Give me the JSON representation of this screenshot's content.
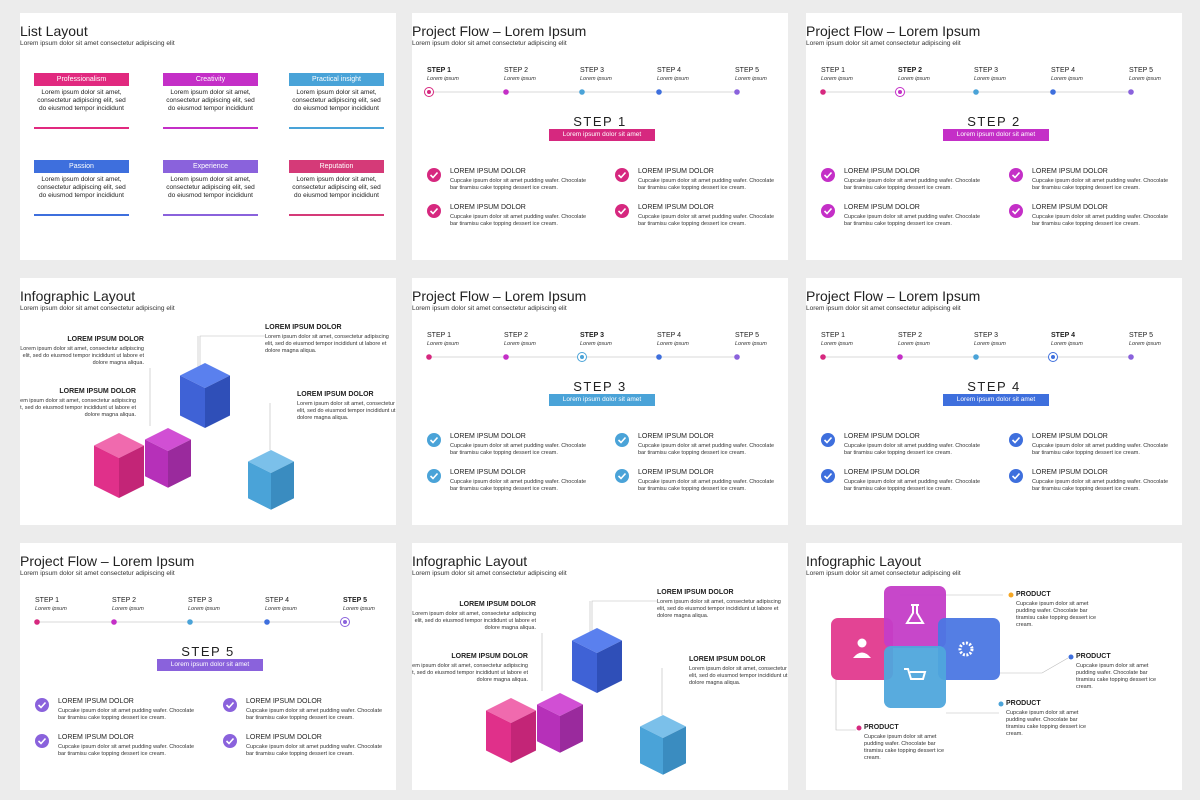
{
  "step_colors": [
    "#d6287f",
    "#c42fc7",
    "#4aa3d8",
    "#3e6fdd",
    "#8a62dc"
  ],
  "slides": [
    {
      "type": "list",
      "title": "List Layout",
      "subtitle": "Lorem ipsum dolor sit amet consectetur adipiscing elit",
      "items": [
        {
          "label": "Professionalism",
          "color": "#e1297f",
          "text": "Lorem ipsum dolor sit amet, consectetur adipiscing elit, sed do eiusmod tempor incididunt"
        },
        {
          "label": "Creativity",
          "color": "#c42fc7",
          "text": "Lorem ipsum dolor sit amet, consectetur adipiscing elit, sed do eiusmod tempor incididunt"
        },
        {
          "label": "Practical insight",
          "color": "#49a3d8",
          "text": "Lorem ipsum dolor sit amet, consectetur adipiscing elit, sed do eiusmod tempor incididunt"
        },
        {
          "label": "Passion",
          "color": "#3e6fdd",
          "text": "Lorem ipsum dolor sit amet, consectetur adipiscing elit, sed do eiusmod tempor incididunt"
        },
        {
          "label": "Experience",
          "color": "#8a62dc",
          "text": "Lorem ipsum dolor sit amet, consectetur adipiscing elit, sed do eiusmod tempor incididunt"
        },
        {
          "label": "Reputation",
          "color": "#d53a78",
          "text": "Lorem ipsum dolor sit amet, consectetur adipiscing elit, sed do eiusmod tempor incididunt"
        }
      ]
    },
    {
      "type": "flow",
      "title": "Project Flow – Lorem Ipsum",
      "subtitle": "Lorem ipsum dolor sit amet consectetur adipiscing elit",
      "steps": [
        {
          "label": "STEP 1",
          "sub": "Lorem ipsum"
        },
        {
          "label": "STEP 2",
          "sub": "Lorem ipsum"
        },
        {
          "label": "STEP 3",
          "sub": "Lorem ipsum"
        },
        {
          "label": "STEP 4",
          "sub": "Lorem ipsum"
        },
        {
          "label": "STEP 5",
          "sub": "Lorem ipsum"
        }
      ],
      "heading": "STEP 1",
      "banner": "Lorem ipsum dolor sit amet",
      "items": [
        {
          "title": "LOREM IPSUM DOLOR",
          "text": "Cupcake ipsum dolor sit amet pudding wafer. Chocolate bar tiramisu cake topping dessert ice cream."
        },
        {
          "title": "LOREM IPSUM DOLOR",
          "text": "Cupcake ipsum dolor sit amet pudding wafer. Chocolate bar tiramisu cake topping dessert ice cream."
        },
        {
          "title": "LOREM IPSUM DOLOR",
          "text": "Cupcake ipsum dolor sit amet pudding wafer. Chocolate bar tiramisu cake topping dessert ice cream."
        },
        {
          "title": "LOREM IPSUM DOLOR",
          "text": "Cupcake ipsum dolor sit amet pudding wafer. Chocolate bar tiramisu cake topping dessert ice cream."
        }
      ]
    },
    {
      "type": "flow",
      "title": "Project Flow – Lorem Ipsum",
      "subtitle": "Lorem ipsum dolor sit amet consectetur adipiscing elit",
      "steps": [
        {
          "label": "STEP 1",
          "sub": "Lorem ipsum"
        },
        {
          "label": "STEP 2",
          "sub": "Lorem ipsum"
        },
        {
          "label": "STEP 3",
          "sub": "Lorem ipsum"
        },
        {
          "label": "STEP 4",
          "sub": "Lorem ipsum"
        },
        {
          "label": "STEP 5",
          "sub": "Lorem ipsum"
        }
      ],
      "heading": "STEP 2",
      "banner": "Lorem ipsum dolor sit amet",
      "items": [
        {
          "title": "LOREM IPSUM DOLOR",
          "text": "Cupcake ipsum dolor sit amet pudding wafer. Chocolate bar tiramisu cake topping dessert ice cream."
        },
        {
          "title": "LOREM IPSUM DOLOR",
          "text": "Cupcake ipsum dolor sit amet pudding wafer. Chocolate bar tiramisu cake topping dessert ice cream."
        },
        {
          "title": "LOREM IPSUM DOLOR",
          "text": "Cupcake ipsum dolor sit amet pudding wafer. Chocolate bar tiramisu cake topping dessert ice cream."
        },
        {
          "title": "LOREM IPSUM DOLOR",
          "text": "Cupcake ipsum dolor sit amet pudding wafer. Chocolate bar tiramisu cake topping dessert ice cream."
        }
      ]
    },
    {
      "type": "cubes",
      "title": "Infographic Layout",
      "subtitle": "Lorem ipsum dolor sit amet consectetur adipiscing elit",
      "blocks": [
        {
          "title": "LOREM IPSUM DOLOR",
          "text": "Lorem ipsum dolor sit amet, consectetur adipiscing elit, sed do eiusmod tempor incididunt ut labore et dolore magna aliqua."
        },
        {
          "title": "LOREM IPSUM DOLOR",
          "text": "Lorem ipsum dolor sit amet, consectetur adipiscing elit, sed do eiusmod tempor incididunt ut labore et dolore magna aliqua."
        },
        {
          "title": "LOREM IPSUM DOLOR",
          "text": "Lorem ipsum dolor sit amet, consectetur adipiscing elit, sed do eiusmod tempor incididunt ut labore et dolore magna aliqua."
        },
        {
          "title": "LOREM IPSUM DOLOR",
          "text": "Lorem ipsum dolor sit amet, consectetur adipiscing elit, sed do eiusmod tempor incididunt ut labore et dolore magna aliqua."
        }
      ]
    },
    {
      "type": "flow",
      "title": "Project Flow – Lorem Ipsum",
      "subtitle": "Lorem ipsum dolor sit amet consectetur adipiscing elit",
      "steps": [
        {
          "label": "STEP 1",
          "sub": "Lorem ipsum"
        },
        {
          "label": "STEP 2",
          "sub": "Lorem ipsum"
        },
        {
          "label": "STEP 3",
          "sub": "Lorem ipsum"
        },
        {
          "label": "STEP 4",
          "sub": "Lorem ipsum"
        },
        {
          "label": "STEP 5",
          "sub": "Lorem ipsum"
        }
      ],
      "heading": "STEP 3",
      "banner": "Lorem ipsum dolor sit amet",
      "items": [
        {
          "title": "LOREM IPSUM DOLOR",
          "text": "Cupcake ipsum dolor sit amet pudding wafer. Chocolate bar tiramisu cake topping dessert ice cream."
        },
        {
          "title": "LOREM IPSUM DOLOR",
          "text": "Cupcake ipsum dolor sit amet pudding wafer. Chocolate bar tiramisu cake topping dessert ice cream."
        },
        {
          "title": "LOREM IPSUM DOLOR",
          "text": "Cupcake ipsum dolor sit amet pudding wafer. Chocolate bar tiramisu cake topping dessert ice cream."
        },
        {
          "title": "LOREM IPSUM DOLOR",
          "text": "Cupcake ipsum dolor sit amet pudding wafer. Chocolate bar tiramisu cake topping dessert ice cream."
        }
      ]
    },
    {
      "type": "flow",
      "title": "Project Flow – Lorem Ipsum",
      "subtitle": "Lorem ipsum dolor sit amet consectetur adipiscing elit",
      "steps": [
        {
          "label": "STEP 1",
          "sub": "Lorem ipsum"
        },
        {
          "label": "STEP 2",
          "sub": "Lorem ipsum"
        },
        {
          "label": "STEP 3",
          "sub": "Lorem ipsum"
        },
        {
          "label": "STEP 4",
          "sub": "Lorem ipsum"
        },
        {
          "label": "STEP 5",
          "sub": "Lorem ipsum"
        }
      ],
      "heading": "STEP 4",
      "banner": "Lorem ipsum dolor sit amet",
      "items": [
        {
          "title": "LOREM IPSUM DOLOR",
          "text": "Cupcake ipsum dolor sit amet pudding wafer. Chocolate bar tiramisu cake topping dessert ice cream."
        },
        {
          "title": "LOREM IPSUM DOLOR",
          "text": "Cupcake ipsum dolor sit amet pudding wafer. Chocolate bar tiramisu cake topping dessert ice cream."
        },
        {
          "title": "LOREM IPSUM DOLOR",
          "text": "Cupcake ipsum dolor sit amet pudding wafer. Chocolate bar tiramisu cake topping dessert ice cream."
        },
        {
          "title": "LOREM IPSUM DOLOR",
          "text": "Cupcake ipsum dolor sit amet pudding wafer. Chocolate bar tiramisu cake topping dessert ice cream."
        }
      ]
    },
    {
      "type": "flow",
      "title": "Project Flow – Lorem Ipsum",
      "subtitle": "Lorem ipsum dolor sit amet consectetur adipiscing elit",
      "steps": [
        {
          "label": "STEP 1",
          "sub": "Lorem ipsum"
        },
        {
          "label": "STEP 2",
          "sub": "Lorem ipsum"
        },
        {
          "label": "STEP 3",
          "sub": "Lorem ipsum"
        },
        {
          "label": "STEP 4",
          "sub": "Lorem ipsum"
        },
        {
          "label": "STEP 5",
          "sub": "Lorem ipsum"
        }
      ],
      "heading": "STEP 5",
      "banner": "Lorem ipsum dolor sit amet",
      "items": [
        {
          "title": "LOREM IPSUM DOLOR",
          "text": "Cupcake ipsum dolor sit amet pudding wafer. Chocolate bar tiramisu cake topping dessert ice cream."
        },
        {
          "title": "LOREM IPSUM DOLOR",
          "text": "Cupcake ipsum dolor sit amet pudding wafer. Chocolate bar tiramisu cake topping dessert ice cream."
        },
        {
          "title": "LOREM IPSUM DOLOR",
          "text": "Cupcake ipsum dolor sit amet pudding wafer. Chocolate bar tiramisu cake topping dessert ice cream."
        },
        {
          "title": "LOREM IPSUM DOLOR",
          "text": "Cupcake ipsum dolor sit amet pudding wafer. Chocolate bar tiramisu cake topping dessert ice cream."
        }
      ]
    },
    {
      "type": "cubes",
      "title": "Infographic Layout",
      "subtitle": "Lorem ipsum dolor sit amet consectetur adipiscing elit",
      "blocks": [
        {
          "title": "LOREM IPSUM DOLOR",
          "text": "Lorem ipsum dolor sit amet, consectetur adipiscing elit, sed do eiusmod tempor incididunt ut labore et dolore magna aliqua."
        },
        {
          "title": "LOREM IPSUM DOLOR",
          "text": "Lorem ipsum dolor sit amet, consectetur adipiscing elit, sed do eiusmod tempor incididunt ut labore et dolore magna aliqua."
        },
        {
          "title": "LOREM IPSUM DOLOR",
          "text": "Lorem ipsum dolor sit amet, consectetur adipiscing elit, sed do eiusmod tempor incididunt ut labore et dolore magna aliqua."
        },
        {
          "title": "LOREM IPSUM DOLOR",
          "text": "Lorem ipsum dolor sit amet, consectetur adipiscing elit, sed do eiusmod tempor incididunt ut labore et dolore magna aliqua."
        }
      ]
    },
    {
      "type": "products",
      "title": "Infographic Layout",
      "subtitle": "Lorem ipsum dolor sit amet consectetur adipiscing elit",
      "products": [
        {
          "title": "PRODUCT",
          "text": "Cupcake ipsum dolor sit amet pudding wafer. Chocolate bar tiramisu cake topping dessert ice cream."
        },
        {
          "title": "PRODUCT",
          "text": "Cupcake ipsum dolor sit amet pudding wafer. Chocolate bar tiramisu cake topping dessert ice cream."
        },
        {
          "title": "PRODUCT",
          "text": "Cupcake ipsum dolor sit amet pudding wafer. Chocolate bar tiramisu cake topping dessert ice cream."
        },
        {
          "title": "PRODUCT",
          "text": "Cupcake ipsum dolor sit amet pudding wafer. Chocolate bar tiramisu cake topping dessert ice cream."
        }
      ]
    }
  ]
}
